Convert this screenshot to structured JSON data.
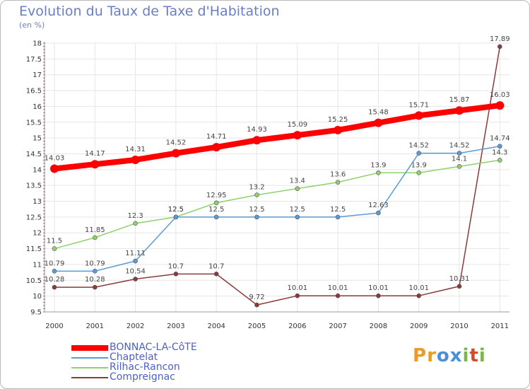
{
  "title": "Evolution du Taux de Taxe d'Habitation",
  "unit_label": "(en %)",
  "logo": {
    "text": "Proxiti",
    "letters": [
      "P",
      "r",
      "o",
      "x",
      "i",
      "t",
      "i"
    ],
    "colors": [
      "#e99a2b",
      "#e99a2b",
      "#4a90d6",
      "#4a90d6",
      "#7ab648",
      "#d04c2f",
      "#7ab648"
    ]
  },
  "chart_data": {
    "type": "line",
    "title": "Evolution du Taux de Taxe d'Habitation",
    "xlabel": "",
    "ylabel": "(en %)",
    "categories": [
      "2000",
      "2001",
      "2002",
      "2003",
      "2004",
      "2005",
      "2006",
      "2007",
      "2008",
      "2009",
      "2010",
      "2011"
    ],
    "ylim": [
      9.5,
      18
    ],
    "yticks": [
      9.5,
      10,
      10.5,
      11,
      11.5,
      12,
      12.5,
      13,
      13.5,
      14,
      14.5,
      15,
      15.5,
      16,
      16.5,
      17,
      17.5,
      18
    ],
    "grid": true,
    "legend": "bottom-left",
    "series": [
      {
        "name": "BONNAC-LA-CôTE",
        "color": "#ff0000",
        "thick": true,
        "values": [
          14.03,
          14.17,
          14.31,
          14.52,
          14.71,
          14.93,
          15.09,
          15.25,
          15.48,
          15.71,
          15.87,
          16.03
        ],
        "labels": [
          "14.03",
          "14.17",
          "14.31",
          "14.52",
          "14.71",
          "14.93",
          "15.09",
          "15.25",
          "15.48",
          "15.71",
          "15.87",
          "16.03"
        ]
      },
      {
        "name": "Chaptelat",
        "color": "#5b9bd5",
        "thick": false,
        "values": [
          10.79,
          10.79,
          11.11,
          12.5,
          12.5,
          12.5,
          12.5,
          12.5,
          12.63,
          14.52,
          14.52,
          14.74
        ],
        "labels": [
          "10.79",
          "10.79",
          "11.11",
          "12.5",
          "12.5",
          "12.5",
          "12.5",
          "12.5",
          "12.63",
          "14.52",
          "14.52",
          "14.74"
        ]
      },
      {
        "name": "Rilhac-Rancon",
        "color": "#8fd16a",
        "thick": false,
        "values": [
          11.5,
          11.85,
          12.3,
          12.5,
          12.95,
          13.2,
          13.4,
          13.6,
          13.9,
          13.9,
          14.1,
          14.3
        ],
        "labels": [
          "11.5",
          "11.85",
          "12.3",
          "12.5",
          "12.95",
          "13.2",
          "13.4",
          "13.6",
          "13.9",
          "13.9",
          "14.1",
          "14.3"
        ]
      },
      {
        "name": "Compreignac",
        "color": "#8b3a3a",
        "thick": false,
        "values": [
          10.28,
          10.28,
          10.54,
          10.7,
          10.7,
          9.72,
          10.01,
          10.01,
          10.01,
          10.01,
          10.31,
          17.89
        ],
        "labels": [
          "10.28",
          "10.28",
          "10.54",
          "10.7",
          "10.7",
          "9.72",
          "10.01",
          "10.01",
          "10.01",
          "10.01",
          "10.31",
          "17.89"
        ]
      }
    ]
  }
}
